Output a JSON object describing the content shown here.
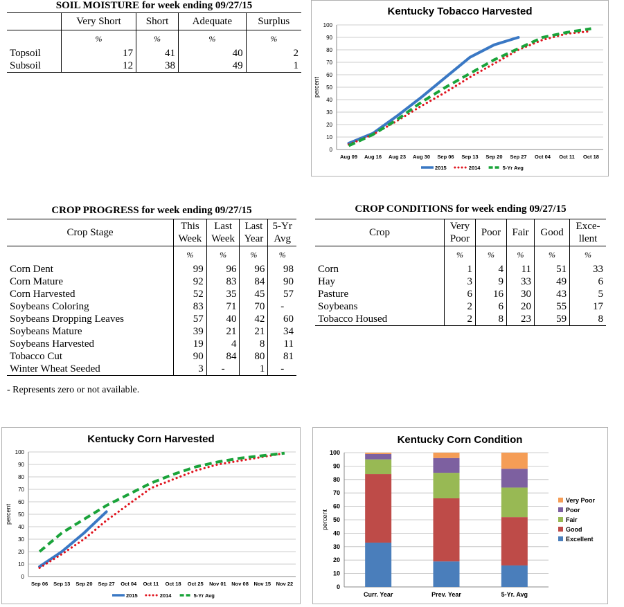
{
  "soil_moisture": {
    "title": "SOIL MOISTURE for week ending 09/27/15",
    "columns": [
      "Very Short",
      "Short",
      "Adequate",
      "Surplus"
    ],
    "unit": "%",
    "rows": [
      {
        "label": "Topsoil",
        "values": [
          "17",
          "41",
          "40",
          "2"
        ]
      },
      {
        "label": "Subsoil",
        "values": [
          "12",
          "38",
          "49",
          "1"
        ]
      }
    ]
  },
  "crop_progress": {
    "title": "CROP PROGRESS for week ending 09/27/15",
    "stage_header": "Crop Stage",
    "columns": [
      [
        "This",
        "Week"
      ],
      [
        "Last",
        "Week"
      ],
      [
        "Last",
        "Year"
      ],
      [
        "5-Yr",
        "Avg"
      ]
    ],
    "unit": "%",
    "rows": [
      {
        "label": "Corn Dent",
        "values": [
          "99",
          "96",
          "96",
          "98"
        ]
      },
      {
        "label": "Corn Mature",
        "values": [
          "92",
          "83",
          "84",
          "90"
        ]
      },
      {
        "label": "Corn Harvested",
        "values": [
          "52",
          "35",
          "45",
          "57"
        ]
      },
      {
        "label": "Soybeans Coloring",
        "values": [
          "83",
          "71",
          "70",
          "-"
        ]
      },
      {
        "label": "Soybeans Dropping Leaves",
        "values": [
          "57",
          "40",
          "42",
          "60"
        ]
      },
      {
        "label": "Soybeans Mature",
        "values": [
          "39",
          "21",
          "21",
          "34"
        ]
      },
      {
        "label": "Soybeans Harvested",
        "values": [
          "19",
          "4",
          "8",
          "11"
        ]
      },
      {
        "label": "Tobacco Cut",
        "values": [
          "90",
          "84",
          "80",
          "81"
        ]
      },
      {
        "label": "Winter Wheat Seeded",
        "values": [
          "3",
          "-",
          "1",
          "-"
        ]
      }
    ],
    "footnote": "- Represents zero or not available."
  },
  "crop_conditions": {
    "title": "CROP CONDITIONS for week ending 09/27/15",
    "crop_header": "Crop",
    "columns": [
      [
        "Very",
        "Poor"
      ],
      [
        "Poor"
      ],
      [
        "Fair"
      ],
      [
        "Good"
      ],
      [
        "Exce-",
        "llent"
      ]
    ],
    "unit": "%",
    "rows": [
      {
        "label": "Corn",
        "values": [
          "1",
          "4",
          "11",
          "51",
          "33"
        ]
      },
      {
        "label": "Hay",
        "values": [
          "3",
          "9",
          "33",
          "49",
          "6"
        ]
      },
      {
        "label": "Pasture",
        "values": [
          "6",
          "16",
          "30",
          "43",
          "5"
        ]
      },
      {
        "label": "Soybeans",
        "values": [
          "2",
          "6",
          "20",
          "55",
          "17"
        ]
      },
      {
        "label": "Tobacco Housed",
        "values": [
          "2",
          "8",
          "23",
          "59",
          "8"
        ]
      }
    ]
  },
  "chart_data": [
    {
      "type": "line",
      "title": "Kentucky Tobacco Harvested",
      "ylabel": "percent",
      "ylim": [
        0,
        100
      ],
      "yticks": [
        0,
        10,
        20,
        30,
        40,
        50,
        60,
        70,
        80,
        90,
        100
      ],
      "categories": [
        "Aug 09",
        "Aug 16",
        "Aug 23",
        "Aug 30",
        "Sep 06",
        "Sep 13",
        "Sep 20",
        "Sep 27",
        "Oct 04",
        "Oct 11",
        "Oct 18"
      ],
      "legend": "bottom",
      "series": [
        {
          "name": "2015",
          "color": "#3a78c4",
          "style": "solid",
          "values": [
            5,
            13,
            27,
            42,
            58,
            74,
            84,
            90,
            null,
            null,
            null
          ]
        },
        {
          "name": "2014",
          "color": "#e0141e",
          "style": "dotted",
          "values": [
            4,
            12,
            23,
            35,
            46,
            58,
            69,
            80,
            88,
            93,
            95
          ]
        },
        {
          "name": "5-Yr Avg",
          "color": "#1aa33a",
          "style": "dashed",
          "values": [
            3,
            12,
            24,
            38,
            50,
            61,
            72,
            81,
            90,
            94,
            97
          ]
        }
      ]
    },
    {
      "type": "line",
      "title": "Kentucky Corn Harvested",
      "ylabel": "percent",
      "ylim": [
        0,
        100
      ],
      "yticks": [
        0,
        10,
        20,
        30,
        40,
        50,
        60,
        70,
        80,
        90,
        100
      ],
      "categories": [
        "Sep 06",
        "Sep 13",
        "Sep 20",
        "Sep 27",
        "Oct 04",
        "Oct 11",
        "Oct 18",
        "Oct 25",
        "Nov 01",
        "Nov 08",
        "Nov 15",
        "Nov 22"
      ],
      "legend": "bottom",
      "series": [
        {
          "name": "2015",
          "color": "#3a78c4",
          "style": "solid",
          "values": [
            8,
            20,
            35,
            52,
            null,
            null,
            null,
            null,
            null,
            null,
            null,
            null
          ]
        },
        {
          "name": "2014",
          "color": "#e0141e",
          "style": "dotted",
          "values": [
            7,
            18,
            30,
            45,
            58,
            71,
            78,
            85,
            90,
            93,
            96,
            99
          ]
        },
        {
          "name": "5-Yr Avg",
          "color": "#1aa33a",
          "style": "dashed",
          "values": [
            20,
            35,
            46,
            57,
            66,
            75,
            82,
            88,
            92,
            95,
            97,
            99
          ]
        }
      ]
    },
    {
      "type": "bar",
      "stacked": true,
      "title": "Kentucky Corn Condition",
      "ylabel": "percent",
      "ylim": [
        0,
        100
      ],
      "yticks": [
        0,
        10,
        20,
        30,
        40,
        50,
        60,
        70,
        80,
        90,
        100
      ],
      "categories": [
        "Curr. Year",
        "Prev. Year",
        "5-Yr. Avg"
      ],
      "legend": "right",
      "series": [
        {
          "name": "Excellent",
          "color": "#4a7ebb",
          "values": [
            33,
            19,
            16
          ]
        },
        {
          "name": "Good",
          "color": "#be4b48",
          "values": [
            51,
            47,
            36
          ]
        },
        {
          "name": "Fair",
          "color": "#98b954",
          "values": [
            11,
            19,
            22
          ]
        },
        {
          "name": "Poor",
          "color": "#7d60a0",
          "values": [
            4,
            11,
            14
          ]
        },
        {
          "name": "Very Poor",
          "color": "#f59d56",
          "values": [
            1,
            4,
            12
          ]
        }
      ]
    }
  ]
}
